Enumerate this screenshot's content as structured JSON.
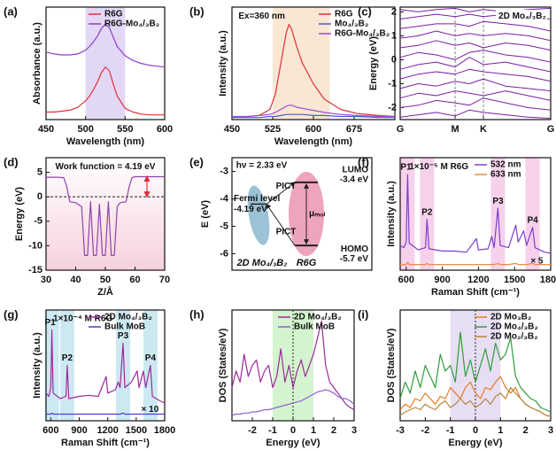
{
  "chart_data": [
    {
      "panel_label": "(a)",
      "type": "line",
      "xlabel": "Wavelength (nm)",
      "ylabel": "Absorbance (a.u.)",
      "xlim": [
        450,
        600
      ],
      "ylim": [
        0,
        1.2
      ],
      "xticks": [
        450,
        500,
        550,
        600
      ],
      "legend": "upper right",
      "shaded": [
        500,
        550
      ],
      "shade_color": "#d6c6f0",
      "x": [
        450,
        460,
        470,
        480,
        490,
        500,
        505,
        510,
        515,
        520,
        525,
        530,
        535,
        540,
        550,
        560,
        570,
        580,
        590,
        600
      ],
      "series": [
        {
          "name": "R6G",
          "color": "#e0303a",
          "values": [
            0.08,
            0.08,
            0.09,
            0.1,
            0.13,
            0.2,
            0.25,
            0.32,
            0.4,
            0.5,
            0.56,
            0.52,
            0.38,
            0.25,
            0.12,
            0.08,
            0.06,
            0.05,
            0.05,
            0.05
          ]
        },
        {
          "name": "R6G-Mo₄/₃B₂",
          "color": "#8e3fc9",
          "values": [
            0.72,
            0.7,
            0.69,
            0.69,
            0.7,
            0.74,
            0.78,
            0.83,
            0.89,
            0.97,
            1.02,
            0.98,
            0.88,
            0.78,
            0.68,
            0.63,
            0.6,
            0.58,
            0.57,
            0.56
          ]
        }
      ]
    },
    {
      "panel_label": "(b)",
      "type": "line",
      "xlabel": "Wavelength (nm)",
      "ylabel": "Intensity (a.u.)",
      "xlim": [
        450,
        750
      ],
      "ylim": [
        0,
        1.1
      ],
      "xticks": [
        450,
        525,
        600,
        675
      ],
      "legend": "upper right",
      "shaded": [
        525,
        630
      ],
      "shade_color": "#f7dcc0",
      "annotations": [
        "Ex=360 nm"
      ],
      "x": [
        450,
        480,
        500,
        520,
        530,
        540,
        550,
        555,
        560,
        570,
        580,
        600,
        620,
        650,
        680,
        720,
        750
      ],
      "series": [
        {
          "name": "R6G",
          "color": "#e0303a",
          "values": [
            0.02,
            0.03,
            0.04,
            0.1,
            0.25,
            0.55,
            0.85,
            0.93,
            0.88,
            0.7,
            0.55,
            0.35,
            0.2,
            0.1,
            0.06,
            0.04,
            0.03
          ]
        },
        {
          "name": "Mo₄/₃B₂",
          "color": "#4a5bd0",
          "values": [
            0.02,
            0.02,
            0.02,
            0.03,
            0.03,
            0.04,
            0.05,
            0.05,
            0.05,
            0.05,
            0.05,
            0.04,
            0.04,
            0.03,
            0.03,
            0.02,
            0.02
          ]
        },
        {
          "name": "R6G-Mo₄/₃B₂",
          "color": "#9b4dd6",
          "values": [
            0.03,
            0.03,
            0.04,
            0.05,
            0.07,
            0.1,
            0.13,
            0.14,
            0.14,
            0.12,
            0.11,
            0.09,
            0.07,
            0.05,
            0.04,
            0.03,
            0.03
          ]
        }
      ]
    },
    {
      "panel_label": "(c)",
      "type": "band",
      "ylabel": "Energy (eV)",
      "xlim": [
        0,
        1
      ],
      "ylim": [
        -2.5,
        2.2
      ],
      "yticks": [
        -2,
        -1,
        0,
        1,
        2
      ],
      "xticks": [
        {
          "value": 0,
          "label": "G"
        },
        {
          "value": 0.365,
          "label": "M"
        },
        {
          "value": 0.553,
          "label": "K"
        },
        {
          "value": 1,
          "label": "G"
        }
      ],
      "annotations": [
        "2D Mo₄/₃B₂"
      ],
      "color": "#7b1fa2",
      "x": [
        0,
        0.12,
        0.24,
        0.365,
        0.46,
        0.553,
        0.7,
        0.85,
        1
      ],
      "bands": [
        [
          -2.4,
          -2.3,
          -2.2,
          -2.35,
          -2.1,
          -2.2,
          -2.3,
          -2.4,
          -2.45
        ],
        [
          -2.0,
          -1.9,
          -1.7,
          -1.8,
          -1.9,
          -1.6,
          -1.8,
          -2.0,
          -2.1
        ],
        [
          -1.6,
          -1.4,
          -1.5,
          -1.3,
          -1.4,
          -1.5,
          -1.3,
          -1.5,
          -1.7
        ],
        [
          -1.2,
          -1.0,
          -1.1,
          -0.9,
          -1.0,
          -0.8,
          -1.1,
          -1.2,
          -1.3
        ],
        [
          -0.8,
          -0.6,
          -0.5,
          -0.6,
          -0.4,
          -0.5,
          -0.6,
          -0.7,
          -0.9
        ],
        [
          -0.4,
          -0.2,
          -0.1,
          -0.3,
          0.1,
          -0.2,
          -0.1,
          -0.3,
          -0.5
        ],
        [
          0.1,
          0.3,
          0.2,
          0.0,
          0.3,
          0.4,
          0.2,
          0.1,
          -0.1
        ],
        [
          0.5,
          0.6,
          0.8,
          0.6,
          0.7,
          0.5,
          0.7,
          0.6,
          0.4
        ],
        [
          0.9,
          1.0,
          1.2,
          1.0,
          1.1,
          1.0,
          1.1,
          1.0,
          0.8
        ],
        [
          1.3,
          1.4,
          1.5,
          1.5,
          1.4,
          1.6,
          1.5,
          1.4,
          1.2
        ],
        [
          1.7,
          1.8,
          1.9,
          1.8,
          1.9,
          1.8,
          1.9,
          1.8,
          1.7
        ],
        [
          2.1,
          2.0,
          2.1,
          2.15,
          2.0,
          2.1,
          2.0,
          2.1,
          2.15
        ]
      ]
    },
    {
      "panel_label": "(d)",
      "type": "line",
      "xlabel": "Z/Å",
      "ylabel": "Energy (eV)",
      "xlim": [
        30,
        70
      ],
      "ylim": [
        -15,
        8
      ],
      "xticks": [
        30,
        40,
        50,
        60,
        70
      ],
      "yticks": [
        5,
        0,
        -5,
        -10,
        -15
      ],
      "zero_line": "horizontal",
      "annotations": [
        "Work function = 4.19 eV"
      ],
      "work_function": 4.19,
      "x": [
        30,
        34,
        36,
        37,
        38,
        40,
        42,
        43,
        44,
        45,
        46,
        47,
        48,
        49,
        50,
        51,
        52,
        53,
        54,
        55,
        57,
        58,
        59,
        60,
        63,
        66,
        70
      ],
      "series": [
        {
          "color": "#8e44ad",
          "values": [
            4,
            4,
            3.9,
            2,
            -1,
            -1.2,
            -2,
            -12,
            -12,
            -1,
            -12,
            -12,
            -1.5,
            -12,
            -12,
            -1,
            -12,
            -12,
            -2,
            -1.2,
            -1,
            2,
            3.9,
            4.1,
            4.1,
            4.1,
            4.1
          ]
        }
      ]
    },
    {
      "panel_label": "(e)",
      "type": "diagram",
      "ylabel": "E (eV)",
      "ylim": [
        -6.6,
        -2.5
      ],
      "yticks": [
        -3,
        -4,
        -5,
        -6
      ],
      "annotations": [
        "hν = 2.33 eV"
      ],
      "levels": [
        {
          "name": "Fermi level",
          "value": -4.19,
          "label": "-4.19 eV"
        },
        {
          "name": "LUMO",
          "value": -3.4,
          "label": "-3.4 eV"
        },
        {
          "name": "HOMO",
          "value": -5.7,
          "label": "-5.7 eV"
        }
      ],
      "transfer_labels": [
        "PICT",
        "PICT"
      ],
      "gap_label": "μₘₒₗ",
      "materials": [
        {
          "name": "2D Mo₄/₃B₂",
          "color": "#4a8fb5"
        },
        {
          "name": "R6G",
          "color": "#e05a8a"
        }
      ]
    },
    {
      "panel_label": "(f)",
      "type": "line",
      "xlabel": "Raman Shift (cm⁻¹)",
      "ylabel": "Intensity (a.u.)",
      "xlim": [
        550,
        1800
      ],
      "ylim": [
        0,
        1
      ],
      "xticks": [
        600,
        900,
        1200,
        1500,
        1800
      ],
      "legend": "upper right",
      "highlight_color": "#f4c6e6",
      "annotations": [
        "1×10⁻⁵ M R6G",
        "× 5"
      ],
      "peaks": [
        {
          "label": "P1",
          "x": 612
        },
        {
          "label": "P2",
          "x": 773
        },
        {
          "label": "P3",
          "x": 1362
        },
        {
          "label": "P4",
          "x": 1650
        }
      ],
      "x": [
        550,
        580,
        600,
        612,
        625,
        700,
        760,
        773,
        790,
        900,
        1000,
        1100,
        1183,
        1200,
        1280,
        1310,
        1330,
        1362,
        1380,
        1450,
        1510,
        1530,
        1575,
        1600,
        1650,
        1670,
        1750,
        1800
      ],
      "series": [
        {
          "name": "532 nm",
          "color": "#7b3fd0",
          "values": [
            0.22,
            0.2,
            0.25,
            0.85,
            0.24,
            0.18,
            0.2,
            0.45,
            0.19,
            0.17,
            0.17,
            0.16,
            0.28,
            0.18,
            0.19,
            0.3,
            0.2,
            0.55,
            0.22,
            0.2,
            0.4,
            0.25,
            0.35,
            0.22,
            0.38,
            0.2,
            0.16,
            0.15
          ]
        },
        {
          "name": "633 nm",
          "color": "#f08a3c",
          "values": [
            0.05,
            0.05,
            0.05,
            0.07,
            0.05,
            0.05,
            0.05,
            0.06,
            0.05,
            0.05,
            0.05,
            0.05,
            0.05,
            0.05,
            0.05,
            0.05,
            0.05,
            0.06,
            0.05,
            0.05,
            0.06,
            0.05,
            0.05,
            0.05,
            0.06,
            0.05,
            0.05,
            0.05
          ]
        }
      ]
    },
    {
      "panel_label": "(g)",
      "type": "line",
      "xlabel": "Raman Shift (cm⁻¹)",
      "ylabel": "Intensity (a.u.)",
      "xlim": [
        550,
        1800
      ],
      "ylim": [
        0,
        1
      ],
      "xticks": [
        600,
        900,
        1200,
        1500,
        1800
      ],
      "legend": "upper right",
      "highlight_color": "#bfe3ee",
      "annotations": [
        "1×10⁻⁴ M R6G",
        "× 10"
      ],
      "peaks": [
        {
          "label": "P1",
          "x": 612
        },
        {
          "label": "P2",
          "x": 773
        },
        {
          "label": "P3",
          "x": 1362
        },
        {
          "label": "P4",
          "x": 1650
        }
      ],
      "x": [
        550,
        580,
        600,
        612,
        625,
        700,
        760,
        773,
        790,
        900,
        1000,
        1100,
        1183,
        1200,
        1280,
        1310,
        1330,
        1362,
        1380,
        1450,
        1510,
        1530,
        1575,
        1600,
        1650,
        1670,
        1750,
        1800
      ],
      "series": [
        {
          "name": "2D Mo₄/₃B₂",
          "color": "#9c2a9c",
          "values": [
            0.25,
            0.22,
            0.3,
            0.82,
            0.25,
            0.2,
            0.22,
            0.5,
            0.2,
            0.22,
            0.23,
            0.22,
            0.4,
            0.25,
            0.28,
            0.35,
            0.3,
            0.7,
            0.3,
            0.35,
            0.45,
            0.3,
            0.45,
            0.3,
            0.5,
            0.22,
            0.18,
            0.16
          ]
        },
        {
          "name": "Bulk MoB",
          "color": "#4a3fd0",
          "values": [
            0.06,
            0.06,
            0.06,
            0.07,
            0.06,
            0.06,
            0.06,
            0.06,
            0.06,
            0.06,
            0.06,
            0.06,
            0.06,
            0.06,
            0.06,
            0.06,
            0.06,
            0.07,
            0.06,
            0.06,
            0.06,
            0.06,
            0.06,
            0.06,
            0.06,
            0.06,
            0.06,
            0.06
          ]
        }
      ]
    },
    {
      "panel_label": "(h)",
      "type": "line",
      "xlabel": "Energy (eV)",
      "ylabel": "DOS (States/eV)",
      "xlim": [
        -3,
        3
      ],
      "ylim": [
        0,
        1
      ],
      "xticks": [
        -2,
        -1,
        0,
        1,
        2,
        3
      ],
      "legend": "upper right",
      "shaded": [
        -1,
        1
      ],
      "shade_color": "#c2f0bb",
      "zero_line": "vertical",
      "x": [
        -3,
        -2.8,
        -2.6,
        -2.4,
        -2.2,
        -2,
        -1.8,
        -1.6,
        -1.4,
        -1.2,
        -1,
        -0.8,
        -0.6,
        -0.4,
        -0.2,
        0,
        0.2,
        0.4,
        0.6,
        0.8,
        1,
        1.2,
        1.4,
        1.6,
        1.8,
        2,
        2.2,
        2.4,
        2.6,
        2.8,
        3
      ],
      "series": [
        {
          "name": "2D Mo₄/₃B₂",
          "color": "#9c2a9c",
          "values": [
            0.3,
            0.45,
            0.35,
            0.6,
            0.4,
            0.5,
            0.55,
            0.35,
            0.45,
            0.5,
            0.3,
            0.4,
            0.65,
            0.35,
            0.5,
            0.3,
            0.45,
            0.55,
            0.4,
            0.5,
            0.6,
            0.75,
            0.9,
            0.5,
            0.35,
            0.3,
            0.25,
            0.2,
            0.15,
            0.12,
            0.1
          ]
        },
        {
          "name": "Bulk MoB",
          "color": "#8a5fd6",
          "values": [
            0.05,
            0.06,
            0.06,
            0.07,
            0.07,
            0.08,
            0.08,
            0.09,
            0.1,
            0.1,
            0.11,
            0.12,
            0.13,
            0.14,
            0.15,
            0.16,
            0.17,
            0.18,
            0.2,
            0.22,
            0.24,
            0.26,
            0.27,
            0.28,
            0.27,
            0.25,
            0.22,
            0.2,
            0.2,
            0.18,
            0.15
          ]
        }
      ]
    },
    {
      "panel_label": "(i)",
      "type": "line",
      "xlabel": "Energy (eV)",
      "ylabel": "DOS (States/eV)",
      "xlim": [
        -3,
        3
      ],
      "ylim": [
        0,
        1
      ],
      "xticks": [
        -3,
        -2,
        -1,
        0,
        1,
        2,
        3
      ],
      "legend": "upper right",
      "shaded": [
        -1,
        1
      ],
      "shade_color": "#ddd0f0",
      "zero_line": "vertical",
      "x": [
        -3,
        -2.8,
        -2.6,
        -2.4,
        -2.2,
        -2,
        -1.8,
        -1.6,
        -1.4,
        -1.2,
        -1,
        -0.8,
        -0.6,
        -0.4,
        -0.2,
        0,
        0.2,
        0.4,
        0.6,
        0.8,
        1,
        1.2,
        1.4,
        1.6,
        1.8,
        2,
        2.2,
        2.4,
        2.6,
        2.8,
        3
      ],
      "series": [
        {
          "name": "2D Mo₃B₂",
          "color": "#e67e22",
          "values": [
            0.1,
            0.15,
            0.12,
            0.2,
            0.18,
            0.25,
            0.2,
            0.15,
            0.22,
            0.2,
            0.3,
            0.25,
            0.2,
            0.3,
            0.35,
            0.25,
            0.2,
            0.3,
            0.28,
            0.35,
            0.4,
            0.3,
            0.25,
            0.3,
            0.2,
            0.15,
            0.12,
            0.1,
            0.08,
            0.05,
            0.04
          ]
        },
        {
          "name": "2D Mo₄/₃B₂",
          "color": "#2e9e3a",
          "values": [
            0.2,
            0.35,
            0.25,
            0.45,
            0.3,
            0.5,
            0.4,
            0.3,
            0.6,
            0.45,
            0.5,
            0.35,
            0.8,
            0.4,
            0.55,
            0.35,
            0.5,
            0.65,
            0.45,
            0.7,
            0.55,
            0.6,
            0.75,
            0.4,
            0.3,
            0.25,
            0.2,
            0.18,
            0.12,
            0.1,
            0.08
          ]
        },
        {
          "name": "2D Mo₂/₃B₂",
          "color": "#b8863a",
          "values": [
            0.05,
            0.08,
            0.1,
            0.12,
            0.1,
            0.15,
            0.12,
            0.1,
            0.15,
            0.18,
            0.12,
            0.15,
            0.2,
            0.15,
            0.18,
            0.12,
            0.15,
            0.2,
            0.15,
            0.22,
            0.25,
            0.2,
            0.3,
            0.25,
            0.2,
            0.15,
            0.12,
            0.1,
            0.08,
            0.05,
            0.04
          ]
        }
      ]
    }
  ]
}
